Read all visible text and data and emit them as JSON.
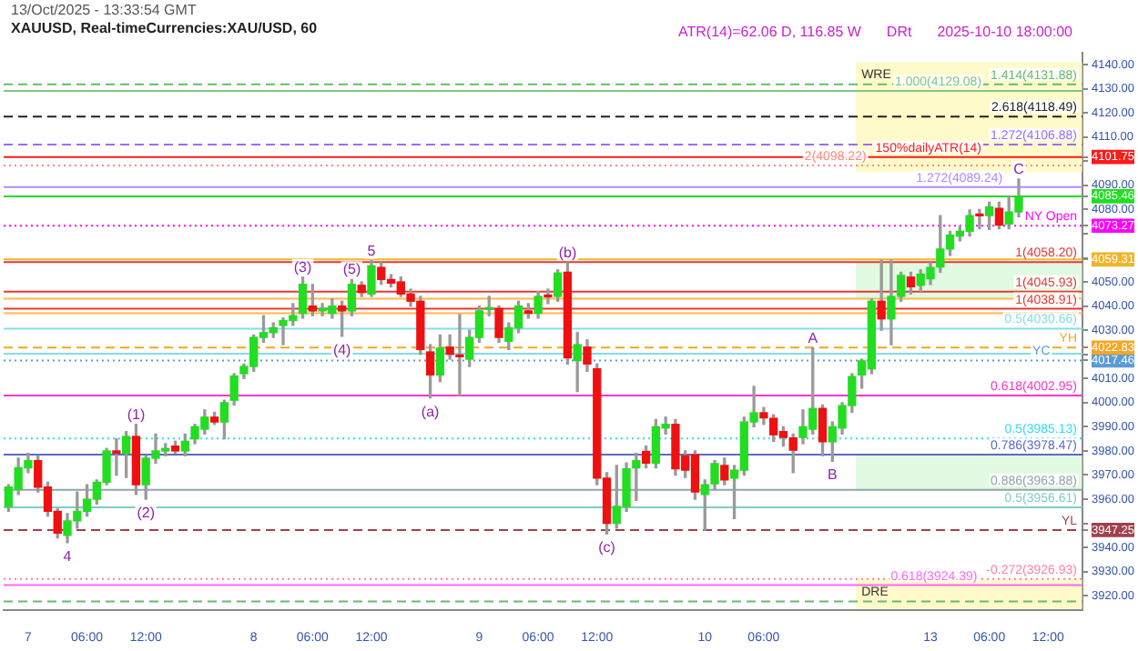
{
  "chart_data": {
    "type": "candlestick",
    "title": "XAUUSD, Real-timeCurrencies:XAU/USD, 60",
    "subtitle": "13/Oct/2025 - 13:33:54 GMT",
    "categories": [
      null,
      null,
      "7",
      null,
      null,
      null,
      null,
      null,
      "06:00",
      null,
      null,
      null,
      null,
      null,
      "12:00",
      null,
      null,
      null,
      null,
      null,
      null,
      null,
      null,
      null,
      null,
      "8",
      null,
      null,
      null,
      null,
      null,
      "06:00",
      null,
      null,
      null,
      null,
      null,
      "12:00",
      null,
      null,
      null,
      null,
      null,
      null,
      null,
      null,
      null,
      null,
      "9",
      null,
      null,
      null,
      null,
      null,
      "06:00",
      null,
      null,
      null,
      null,
      null,
      "12:00",
      null,
      null,
      null,
      null,
      null,
      null,
      null,
      null,
      null,
      null,
      "10",
      null,
      null,
      null,
      null,
      null,
      "06:00",
      null,
      null,
      null,
      null,
      null,
      null,
      null,
      null,
      null,
      null,
      null,
      null,
      null,
      null,
      null,
      null,
      "13",
      null,
      null,
      null,
      null,
      null,
      "06:00",
      null,
      null,
      null,
      null,
      null,
      "12:00",
      null,
      null,
      null
    ],
    "ohlc": [
      [
        3957,
        3966,
        3955,
        3965
      ],
      [
        3964,
        3977,
        3962,
        3973
      ],
      [
        3973,
        3979,
        3971,
        3976
      ],
      [
        3976,
        3978,
        3963,
        3965
      ],
      [
        3965,
        3967,
        3953,
        3955
      ],
      [
        3955,
        3956,
        3944,
        3946
      ],
      [
        3945,
        3954,
        3942,
        3951
      ],
      [
        3951,
        3963,
        3948,
        3955
      ],
      [
        3955,
        3966,
        3953,
        3960
      ],
      [
        3960,
        3968,
        3958,
        3967
      ],
      [
        3967,
        3981,
        3966,
        3980
      ],
      [
        3980,
        3985,
        3970,
        3979
      ],
      [
        3979,
        3988,
        3969,
        3986
      ],
      [
        3986,
        3991,
        3962,
        3966
      ],
      [
        3966,
        3978,
        3960,
        3977
      ],
      [
        3977,
        3987,
        3975,
        3980
      ],
      [
        3980,
        3983,
        3978,
        3981
      ],
      [
        3982,
        3984,
        3979,
        3980
      ],
      [
        3980,
        3987,
        3978,
        3984
      ],
      [
        3985,
        3991,
        3983,
        3990
      ],
      [
        3989,
        3997,
        3987,
        3994
      ],
      [
        3994,
        3996,
        3991,
        3992
      ],
      [
        3992,
        4001,
        3985,
        4000
      ],
      [
        4001,
        4012,
        3999,
        4011
      ],
      [
        4012,
        4016,
        4010,
        4015
      ],
      [
        4015,
        4028,
        4013,
        4027
      ],
      [
        4027,
        4036,
        4025,
        4029
      ],
      [
        4029,
        4033,
        4027,
        4031
      ],
      [
        4032,
        4035,
        4024,
        4034
      ],
      [
        4034,
        4041,
        4032,
        4036
      ],
      [
        4037,
        4052,
        4035,
        4049
      ],
      [
        4040,
        4049,
        4036,
        4038
      ],
      [
        4038,
        4041,
        4036,
        4039
      ],
      [
        4037,
        4043,
        4035,
        4040
      ],
      [
        4040,
        4042,
        4027.5,
        4038
      ],
      [
        4038,
        4051,
        4036,
        4049
      ],
      [
        4048.6,
        4050,
        4044,
        4045.6
      ],
      [
        4045,
        4058.8,
        4044,
        4056.7
      ],
      [
        4056,
        4058,
        4049,
        4051
      ],
      [
        4051,
        4053,
        4048,
        4049.5
      ],
      [
        4050,
        4052,
        4044,
        4045
      ],
      [
        4045,
        4047,
        4040,
        4042
      ],
      [
        4042,
        4044,
        4020,
        4022
      ],
      [
        4021,
        4024,
        4002,
        4011.5
      ],
      [
        4011.5,
        4028,
        4008.7,
        4022.6
      ],
      [
        4023,
        4028,
        4018,
        4020
      ],
      [
        4019.5,
        4036.5,
        4003,
        4019
      ],
      [
        4018,
        4030,
        4015,
        4027
      ],
      [
        4027,
        4040,
        4025,
        4038
      ],
      [
        4038.6,
        4044,
        4036,
        4039
      ],
      [
        4039,
        4040,
        4025,
        4027
      ],
      [
        4025.4,
        4033,
        4022,
        4031
      ],
      [
        4031,
        4042,
        4029,
        4040
      ],
      [
        4038,
        4041,
        4035,
        4037
      ],
      [
        4037,
        4046,
        4035,
        4044
      ],
      [
        4044.2,
        4047,
        4041,
        4043.8
      ],
      [
        4044,
        4055,
        4042,
        4053.7
      ],
      [
        4054,
        4058,
        4016,
        4018.5
      ],
      [
        4017.4,
        4029,
        4004.6,
        4024
      ],
      [
        4023,
        4026,
        4013,
        4016
      ],
      [
        4014,
        4016,
        3966,
        3968.7
      ],
      [
        3968.7,
        3971,
        3945.6,
        3950
      ],
      [
        3950,
        3974,
        3948,
        3957
      ],
      [
        3957,
        3975,
        3955,
        3972.6
      ],
      [
        3973,
        3979,
        3959.5,
        3976
      ],
      [
        3979.8,
        3982,
        3973,
        3975
      ],
      [
        3975,
        3993,
        3973,
        3990
      ],
      [
        3989.5,
        3994,
        3987,
        3991
      ],
      [
        3991,
        3993,
        3970,
        3972.6
      ],
      [
        3978,
        3980,
        3969,
        3972
      ],
      [
        3978.4,
        3980,
        3960,
        3963
      ],
      [
        3962,
        3968,
        3947.2,
        3966
      ],
      [
        3966.4,
        3976,
        3964,
        3974.7
      ],
      [
        3974,
        3977,
        3966,
        3968
      ],
      [
        3968.7,
        3974,
        3952,
        3972
      ],
      [
        3972,
        3994,
        3970,
        3992
      ],
      [
        3992,
        4006.7,
        3990,
        3995.8
      ],
      [
        3995.8,
        3998,
        3991,
        3993.7
      ],
      [
        3993.5,
        3995,
        3984,
        3986.7
      ],
      [
        3988,
        3990,
        3982,
        3985.6
      ],
      [
        3985.4,
        3987,
        3971,
        3980.3
      ],
      [
        3985.6,
        3997,
        3983,
        3990
      ],
      [
        3989,
        4022.6,
        3987,
        3997.6
      ],
      [
        3997.6,
        3999,
        3978,
        3983.8
      ],
      [
        3983.8,
        3992,
        3975.7,
        3990
      ],
      [
        3989.5,
        4000,
        3987,
        3998.8
      ],
      [
        3998.8,
        4012,
        3996,
        4010.8
      ],
      [
        4011.5,
        4018,
        4006,
        4017.3
      ],
      [
        4014,
        4043,
        4012,
        4042
      ],
      [
        4042,
        4059,
        4030,
        4034.7
      ],
      [
        4034.7,
        4059,
        4024,
        4044
      ],
      [
        4044,
        4054,
        4042,
        4052.7
      ],
      [
        4052,
        4054,
        4045,
        4048
      ],
      [
        4048.6,
        4055,
        4046,
        4053.2
      ],
      [
        4051.3,
        4058,
        4049,
        4056
      ],
      [
        4056.2,
        4077.5,
        4054,
        4063.6
      ],
      [
        4063.6,
        4071,
        4061,
        4069.4
      ],
      [
        4069,
        4073,
        4067,
        4071
      ],
      [
        4071,
        4079.8,
        4069,
        4077.5
      ],
      [
        4077.6,
        4080,
        4072,
        4077.4
      ],
      [
        4077.5,
        4083,
        4071.7,
        4081
      ],
      [
        4080.5,
        4083,
        4072,
        4073.5
      ],
      [
        4074,
        4085.6,
        4072,
        4079
      ],
      [
        4079,
        4092.6,
        4077,
        4085.46
      ],
      null,
      null,
      null,
      null,
      null,
      null
    ],
    "value_labels": [
      null,
      null,
      null,
      null,
      null,
      null,
      "4",
      null,
      null,
      null,
      null,
      null,
      null,
      "(1)",
      "(2)",
      null,
      null,
      null,
      null,
      null,
      null,
      null,
      null,
      null,
      null,
      null,
      null,
      null,
      null,
      null,
      "(3)",
      null,
      null,
      null,
      "(4)",
      "(5)",
      null,
      "5",
      null,
      null,
      null,
      null,
      null,
      "(a)",
      null,
      null,
      null,
      null,
      null,
      null,
      null,
      null,
      null,
      null,
      null,
      null,
      null,
      "(b)",
      null,
      null,
      null,
      "(c)",
      null,
      null,
      null,
      null,
      null,
      null,
      null,
      null,
      null,
      null,
      null,
      null,
      null,
      null,
      null,
      null,
      null,
      null,
      null,
      null,
      "A",
      null,
      "B",
      null,
      null,
      null,
      null,
      null,
      null,
      null,
      null,
      null,
      null,
      null,
      null,
      null,
      null,
      null,
      null,
      null,
      null,
      "C",
      null,
      null,
      null,
      null,
      null,
      null
    ],
    "ylim": [
      3914,
      4145
    ],
    "yticks": [
      {
        "value": 3920,
        "label": "3920.00"
      },
      {
        "value": 3930,
        "label": "3930.00"
      },
      {
        "value": 3940,
        "label": "3940.00"
      },
      {
        "value": 3947.25,
        "label": "3947.25"
      },
      {
        "value": 3950,
        "label": null
      },
      {
        "value": 3960,
        "label": "3960.00"
      },
      {
        "value": 3970,
        "label": "3970.00"
      },
      {
        "value": 3980,
        "label": "3980.00"
      },
      {
        "value": 3990,
        "label": "3990.00"
      },
      {
        "value": 4000,
        "label": "4000.00"
      },
      {
        "value": 4010,
        "label": "4010.00"
      },
      {
        "value": 4017.46,
        "label": "4017.46"
      },
      {
        "value": 4020,
        "label": null
      },
      {
        "value": 4022.83,
        "label": "4022.83"
      },
      {
        "value": 4030,
        "label": "4030.00"
      },
      {
        "value": 4040,
        "label": "4040.00"
      },
      {
        "value": 4050,
        "label": "4050.00"
      },
      {
        "value": 4059.31,
        "label": "4059.31"
      },
      {
        "value": 4060,
        "label": null
      },
      {
        "value": 4070,
        "label": null
      },
      {
        "value": 4073.27,
        "label": "4073.27"
      },
      {
        "value": 4080,
        "label": "4080.00"
      },
      {
        "value": 4085.46,
        "label": "4085.46"
      },
      {
        "value": 4090,
        "label": "4090.00"
      },
      {
        "value": 4100,
        "label": null
      },
      {
        "value": 4101.75,
        "label": "4101.75"
      },
      {
        "value": 4110,
        "label": "4110.00"
      },
      {
        "value": 4120,
        "label": "4120.00"
      },
      {
        "value": 4130,
        "label": "4130.00"
      },
      {
        "value": 4140,
        "label": "4140.00"
      }
    ],
    "ref_lines": [
      {
        "axis": "y",
        "value": 4131.88,
        "label": "1.414(4131.88)",
        "color": "#66bb6a",
        "line_style": "dashed"
      },
      {
        "axis": "y",
        "value": 4129.08,
        "label": "1.000(4129.08)",
        "color": "#81c784",
        "line_style": "solid"
      },
      {
        "axis": "y",
        "value": 4118.49,
        "label": "2.618(4118.49)",
        "color": "#222222",
        "line_style": "dashed"
      },
      {
        "axis": "y",
        "value": 4106.88,
        "label": "1.272(4106.88)",
        "color": "#9c6cff",
        "line_style": "dashed"
      },
      {
        "axis": "y",
        "value": 4101.75,
        "label": "150%dailyATR(14)",
        "color": "#ff1a1a",
        "line_style": "solid"
      },
      {
        "axis": "y",
        "value": 4098.22,
        "label": "2(4098.22)",
        "color": "#ff8a80",
        "line_style": "dotted"
      },
      {
        "axis": "y",
        "value": 4089.24,
        "label": "1.272(4089.24)",
        "color": "#b388ff",
        "line_style": "solid"
      },
      {
        "axis": "y",
        "value": 4085.46,
        "color": "#22dd22",
        "line_style": "solid"
      },
      {
        "axis": "y",
        "value": 4073.27,
        "label": "NY Open",
        "color": "#ff00ff",
        "line_style": "dotted"
      },
      {
        "axis": "y",
        "value": 4059.31,
        "color": "#f0b429",
        "line_style": "solid"
      },
      {
        "axis": "y",
        "value": 4058.2,
        "label": "1(4058.20)",
        "color": "#e53935",
        "line_style": "solid"
      },
      {
        "axis": "y",
        "value": 4045.93,
        "label": "1(4045.93)",
        "color": "#e53935",
        "line_style": "solid"
      },
      {
        "axis": "y",
        "value": 4043.1,
        "color": "#ffb74d",
        "line_style": "solid"
      },
      {
        "axis": "y",
        "value": 4038.91,
        "label": "1(4038.91)",
        "color": "#e53935",
        "line_style": "solid"
      },
      {
        "axis": "y",
        "value": 4037,
        "color": "#ffb74d",
        "line_style": "solid"
      },
      {
        "axis": "y",
        "value": 4030.66,
        "label": "0.5(4030.66)",
        "color": "#80deea",
        "line_style": "solid"
      },
      {
        "axis": "y",
        "value": 4022.83,
        "label": "YH",
        "color": "#f5a623",
        "line_style": "dashed"
      },
      {
        "axis": "y",
        "value": 4020.3,
        "color": "#80deea",
        "line_style": "solid"
      },
      {
        "axis": "y",
        "value": 4017.46,
        "label": "YC",
        "color": "#5b9bd5",
        "line_style": "dotted"
      },
      {
        "axis": "y",
        "value": 4002.95,
        "label": "0.618(4002.95)",
        "color": "#ff33cc",
        "line_style": "solid"
      },
      {
        "axis": "y",
        "value": 3985.13,
        "label": "0.5(3985.13)",
        "color": "#33ddee",
        "line_style": "dotted"
      },
      {
        "axis": "y",
        "value": 3978.47,
        "label": "0.786(3978.47)",
        "color": "#5c6bc0",
        "line_style": "solid"
      },
      {
        "axis": "y",
        "value": 3963.88,
        "label": "0.886(3963.88)",
        "color": "#90a4ae",
        "line_style": "solid"
      },
      {
        "axis": "y",
        "value": 3956.61,
        "label": "0.5(3956.61)",
        "color": "#80cbc4",
        "line_style": "solid"
      },
      {
        "axis": "y",
        "value": 3947.25,
        "label": "YL",
        "color": "#a0414b",
        "line_style": "dashed"
      },
      {
        "axis": "y",
        "value": 3926.93,
        "label": "-0.272(3926.93)",
        "color": "#ff80ab",
        "line_style": "dotted"
      },
      {
        "axis": "y",
        "value": 3924.39,
        "label": "0.618(3924.39)",
        "color": "#ff66ff",
        "line_style": "solid"
      },
      {
        "axis": "y",
        "value": 3917.7,
        "color": "#66bb6a",
        "line_style": "dashed"
      }
    ],
    "bands": [
      {
        "axis": "y",
        "from": 4095.5,
        "to": 4141,
        "label": "WRE",
        "color": "#fff59d"
      },
      {
        "axis": "y",
        "from": 4043.1,
        "to": 4058.2,
        "color": "#c8f5c8"
      },
      {
        "axis": "y",
        "from": 3963.88,
        "to": 3978.47,
        "color": "#c8f5c8"
      },
      {
        "axis": "y",
        "from": 3914.5,
        "to": 3927,
        "label": "DRE",
        "color": "#fff59d"
      }
    ],
    "annotations": [
      "ATR(14)=62.06 D, 116.85 W",
      "DRt",
      "2025-10-10 18:00:00"
    ],
    "grid": false,
    "legend": false
  }
}
